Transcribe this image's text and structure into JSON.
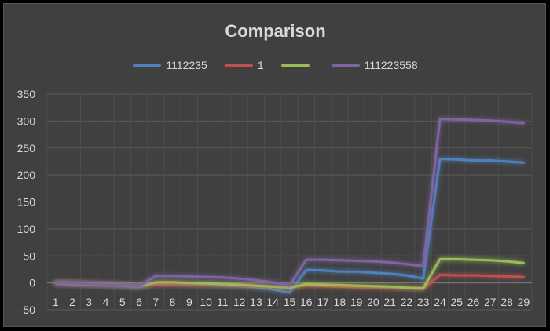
{
  "chart_data": {
    "type": "line",
    "title": "Comparison",
    "legend_position": "top",
    "grid": true,
    "xlabel": "",
    "ylabel": "",
    "ylim": [
      -50,
      350
    ],
    "yticks": [
      -50,
      0,
      50,
      100,
      150,
      200,
      250,
      300,
      350
    ],
    "categories": [
      "1",
      "2",
      "3",
      "4",
      "5",
      "6",
      "7",
      "8",
      "9",
      "10",
      "11",
      "12",
      "13",
      "14",
      "15",
      "16",
      "17",
      "18",
      "19",
      "20",
      "21",
      "22",
      "23",
      "24",
      "25",
      "26",
      "27",
      "28",
      "29"
    ],
    "series": [
      {
        "name": "1112235",
        "color": "#4f81bd",
        "values": [
          0,
          -2,
          -3,
          -3,
          -5,
          -7,
          -2,
          -2,
          -3,
          -4,
          -5,
          -6,
          -8,
          -12,
          -18,
          24,
          23,
          21,
          21,
          19,
          17,
          14,
          8,
          230,
          229,
          227,
          227,
          225,
          223
        ]
      },
      {
        "name": "1",
        "color": "#c0504d",
        "values": [
          0,
          -1,
          -2,
          -3,
          -4,
          -6,
          -3,
          -3,
          -4,
          -4,
          -4,
          -5,
          -6,
          -7,
          -8,
          -5,
          -6,
          -7,
          -8,
          -8,
          -9,
          -10,
          -11,
          15,
          14,
          14,
          13,
          12,
          11
        ]
      },
      {
        "name": "",
        "color": "#9bbb59",
        "values": [
          0,
          -1,
          -2,
          -3,
          -4,
          -6,
          1,
          1,
          0,
          -1,
          -2,
          -3,
          -5,
          -7,
          -9,
          -2,
          -3,
          -4,
          -5,
          -6,
          -7,
          -9,
          -10,
          44,
          44,
          43,
          42,
          40,
          37
        ]
      },
      {
        "name": "111223558",
        "color": "#8064a2",
        "values": [
          0,
          -1,
          -2,
          -3,
          -4,
          -6,
          13,
          13,
          12,
          11,
          10,
          8,
          5,
          1,
          -5,
          43,
          43,
          42,
          41,
          40,
          38,
          35,
          31,
          304,
          303,
          302,
          301,
          299,
          296
        ]
      }
    ]
  }
}
